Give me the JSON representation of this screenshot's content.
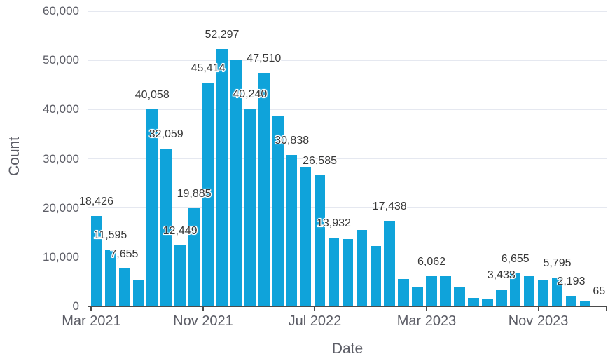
{
  "chart_data": {
    "type": "bar",
    "title": "",
    "xlabel": "Date",
    "ylabel": "Count",
    "ylim": [
      0,
      60000
    ],
    "grid": "horizontal-light",
    "legend": "none",
    "bar_color": "#0fa3da",
    "axis_text_color": "#5c5d66",
    "data_label_color": "#383838",
    "y_ticks": [
      {
        "value": 0,
        "label": "0"
      },
      {
        "value": 10000,
        "label": "10,000"
      },
      {
        "value": 20000,
        "label": "20,000"
      },
      {
        "value": 30000,
        "label": "30,000"
      },
      {
        "value": 40000,
        "label": "40,000"
      },
      {
        "value": 50000,
        "label": "50,000"
      },
      {
        "value": 60000,
        "label": "60,000"
      }
    ],
    "x_ticks": [
      {
        "label": "Mar 2021",
        "month_index": 0
      },
      {
        "label": "Nov 2021",
        "month_index": 8
      },
      {
        "label": "Jul 2022",
        "month_index": 16
      },
      {
        "label": "Mar 2023",
        "month_index": 24
      },
      {
        "label": "Nov 2023",
        "month_index": 32
      }
    ],
    "points": [
      {
        "month": "Mar 2021",
        "value": 18426,
        "data_label": "18,426"
      },
      {
        "month": "Apr 2021",
        "value": 11595,
        "data_label": "11,595"
      },
      {
        "month": "May 2021",
        "value": 7655,
        "data_label": "7,655"
      },
      {
        "month": "Jun 2021",
        "value": 5400,
        "data_label": "",
        "estimated": true
      },
      {
        "month": "Jul 2021",
        "value": 40058,
        "data_label": "40,058"
      },
      {
        "month": "Aug 2021",
        "value": 32059,
        "data_label": "32,059"
      },
      {
        "month": "Sep 2021",
        "value": 12449,
        "data_label": "12,449"
      },
      {
        "month": "Oct 2021",
        "value": 19885,
        "data_label": "19,885"
      },
      {
        "month": "Nov 2021",
        "value": 45414,
        "data_label": "45,414"
      },
      {
        "month": "Dec 2021",
        "value": 52297,
        "data_label": "52,297"
      },
      {
        "month": "Jan 2022",
        "value": 50200,
        "data_label": "",
        "estimated": true
      },
      {
        "month": "Feb 2022",
        "value": 40240,
        "data_label": "40,240"
      },
      {
        "month": "Mar 2022",
        "value": 47510,
        "data_label": "47,510"
      },
      {
        "month": "Apr 2022",
        "value": 38600,
        "data_label": "",
        "estimated": true
      },
      {
        "month": "May 2022",
        "value": 30838,
        "data_label": "30,838"
      },
      {
        "month": "Jun 2022",
        "value": 28300,
        "data_label": "",
        "estimated": true
      },
      {
        "month": "Jul 2022",
        "value": 26585,
        "data_label": "26,585"
      },
      {
        "month": "Aug 2022",
        "value": 13932,
        "data_label": "13,932"
      },
      {
        "month": "Sep 2022",
        "value": 13700,
        "data_label": "",
        "estimated": true
      },
      {
        "month": "Oct 2022",
        "value": 15600,
        "data_label": "",
        "estimated": true
      },
      {
        "month": "Nov 2022",
        "value": 12250,
        "data_label": "",
        "estimated": true
      },
      {
        "month": "Dec 2022",
        "value": 17438,
        "data_label": "17,438"
      },
      {
        "month": "Jan 2023",
        "value": 5500,
        "data_label": "",
        "estimated": true
      },
      {
        "month": "Feb 2023",
        "value": 3800,
        "data_label": "",
        "estimated": true
      },
      {
        "month": "Mar 2023",
        "value": 6062,
        "data_label": "6,062"
      },
      {
        "month": "Apr 2023",
        "value": 6150,
        "data_label": "",
        "estimated": true
      },
      {
        "month": "May 2023",
        "value": 4000,
        "data_label": "",
        "estimated": true
      },
      {
        "month": "Jun 2023",
        "value": 1700,
        "data_label": "",
        "estimated": true
      },
      {
        "month": "Jul 2023",
        "value": 1550,
        "data_label": "",
        "estimated": true
      },
      {
        "month": "Aug 2023",
        "value": 3433,
        "data_label": "3,433"
      },
      {
        "month": "Sep 2023",
        "value": 6655,
        "data_label": "6,655"
      },
      {
        "month": "Oct 2023",
        "value": 6200,
        "data_label": "",
        "estimated": true
      },
      {
        "month": "Nov 2023",
        "value": 5300,
        "data_label": "",
        "estimated": true
      },
      {
        "month": "Dec 2023",
        "value": 5795,
        "data_label": "5,795"
      },
      {
        "month": "Jan 2024",
        "value": 2193,
        "data_label": "2,193"
      },
      {
        "month": "Feb 2024",
        "value": 1000,
        "data_label": "",
        "estimated": true
      },
      {
        "month": "Mar 2024",
        "value": 65,
        "data_label": "65"
      }
    ]
  }
}
